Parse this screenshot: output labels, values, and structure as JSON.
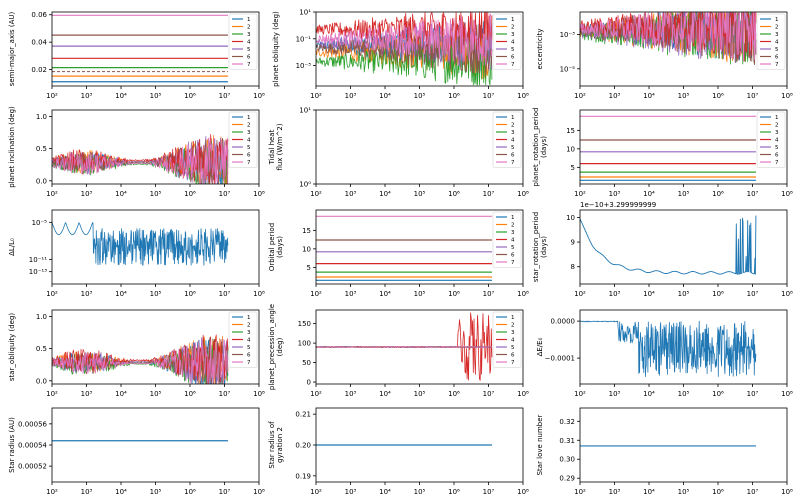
{
  "figure": {
    "background": "#ffffff"
  },
  "colors": [
    "#1f77b4",
    "#ff7f0e",
    "#2ca02c",
    "#d62728",
    "#9467bd",
    "#8c564b",
    "#e377c2"
  ],
  "x_axis": {
    "scale": "log",
    "range": [
      100,
      100000000
    ],
    "ticks": [
      2,
      3,
      4,
      5,
      6,
      7,
      8
    ]
  },
  "chart_data": [
    {
      "id": "sma",
      "type": "line",
      "ylabel": "semi-major_axis (AU)",
      "yscale": "linear",
      "ylim": [
        0.008,
        0.062
      ],
      "yticks": [
        "0.02",
        "0.04",
        "0.06"
      ],
      "ytick_values": [
        0.02,
        0.04,
        0.06
      ],
      "legend": [
        "1",
        "2",
        "3",
        "4",
        "5",
        "6",
        "7"
      ],
      "style": "flat",
      "series_values": [
        0.0111,
        0.0152,
        0.0214,
        0.0282,
        0.0371,
        0.0451,
        0.0596
      ]
    },
    {
      "id": "pob",
      "type": "line",
      "ylabel": "planet obliquity (deg)",
      "yscale": "log",
      "ylim": [
        3e-05,
        10
      ],
      "yticks": [
        "10⁻³",
        "10⁻¹",
        "10¹"
      ],
      "ytick_values": [
        0.001,
        0.1,
        10
      ],
      "legend": [
        "1",
        "2",
        "3",
        "4",
        "5",
        "6",
        "7"
      ],
      "style": "noisy-log",
      "series_values": [
        0.03,
        0.01,
        0.002,
        0.5,
        0.05,
        0.02,
        0.1
      ]
    },
    {
      "id": "ecc",
      "type": "line",
      "ylabel": "eccentricity",
      "yscale": "log",
      "ylim": [
        1e-06,
        0.02
      ],
      "yticks": [
        "10⁻³",
        "10⁻⁵"
      ],
      "ytick_values": [
        0.001,
        1e-05
      ],
      "legend": [
        "1",
        "2",
        "3",
        "4",
        "5",
        "6",
        "7"
      ],
      "style": "noisy-log",
      "series_values": [
        0.002,
        0.0015,
        0.001,
        0.003,
        0.0012,
        0.0018,
        0.002
      ]
    },
    {
      "id": "pinc",
      "type": "line",
      "ylabel": "planet inclination (deg)",
      "yscale": "linear",
      "ylim": [
        -0.05,
        1.1
      ],
      "yticks": [
        "0.0",
        "0.5",
        "1.0"
      ],
      "ytick_values": [
        0,
        0.5,
        1.0
      ],
      "legend": [
        "1",
        "2",
        "3",
        "4",
        "5",
        "6",
        "7"
      ],
      "style": "band",
      "series_values": [
        0.28,
        0.3,
        0.26,
        0.32,
        0.3,
        0.28,
        0.27
      ]
    },
    {
      "id": "heat",
      "type": "line",
      "ylabel": "Tidal heat\nflux (W/m^2)",
      "yscale": "log",
      "ylim": [
        1,
        10
      ],
      "yticks": [
        "10⁰",
        "10¹"
      ],
      "ytick_values": [
        1,
        10
      ],
      "legend": [
        "1",
        "2",
        "3",
        "4",
        "5",
        "6",
        "7"
      ],
      "style": "empty",
      "series_values": []
    },
    {
      "id": "prot",
      "type": "line",
      "ylabel": "planet_rotation_period\n(days)",
      "yscale": "linear",
      "ylim": [
        0.5,
        20.5
      ],
      "yticks": [
        "5",
        "10",
        "15"
      ],
      "ytick_values": [
        5,
        10,
        15
      ],
      "legend": [
        "1",
        "2",
        "3",
        "4",
        "5",
        "6",
        "7"
      ],
      "style": "flat",
      "series_values": [
        1.5,
        2.4,
        3.7,
        6.0,
        9.2,
        12.4,
        18.8
      ]
    },
    {
      "id": "dL",
      "type": "line",
      "ylabel": "ΔL/L₀",
      "yscale": "log",
      "ylim": 1e-15,
      "ylim_max": 0.001,
      "yticks": [
        "10⁻⁵",
        "10⁻¹¹",
        "10⁻¹³"
      ],
      "ytick_values": [
        1e-05,
        1e-11,
        1e-13
      ],
      "legend": [],
      "style": "single-noisy",
      "series_values": [
        1e-05
      ]
    },
    {
      "id": "porb",
      "type": "line",
      "ylabel": "Orbital period\n(days)",
      "yscale": "linear",
      "ylim": [
        0.5,
        20.5
      ],
      "yticks": [
        "5",
        "10",
        "15"
      ],
      "ytick_values": [
        5,
        10,
        15
      ],
      "legend": [
        "1",
        "2",
        "3",
        "4",
        "5",
        "6",
        "7"
      ],
      "style": "flat",
      "series_values": [
        1.5,
        2.4,
        3.7,
        6.0,
        9.2,
        12.4,
        18.8
      ]
    },
    {
      "id": "srot",
      "type": "line",
      "ylabel": "star_rotation_period\n(days)",
      "yscale": "linear",
      "offset_text": "1e−10+3.299999999",
      "ylim": [
        7.3,
        10.3
      ],
      "yticks": [
        "8",
        "9",
        "10"
      ],
      "ytick_values": [
        8,
        9,
        10
      ],
      "legend": [],
      "style": "srot",
      "series_values": [
        10.0
      ]
    },
    {
      "id": "sob",
      "type": "line",
      "ylabel": "star_obliquity (deg)",
      "yscale": "linear",
      "ylim": [
        -0.05,
        1.1
      ],
      "yticks": [
        "0.0",
        "0.5",
        "1.0"
      ],
      "ytick_values": [
        0,
        0.5,
        1.0
      ],
      "legend": [
        "1",
        "2",
        "3",
        "4",
        "5",
        "6",
        "7"
      ],
      "style": "band",
      "series_values": [
        0.28,
        0.3,
        0.26,
        0.32,
        0.3,
        0.28,
        0.27
      ]
    },
    {
      "id": "prec",
      "type": "line",
      "ylabel": "planet_precession_angle\n(deg)",
      "yscale": "linear",
      "ylim": [
        -5,
        185
      ],
      "yticks": [
        "0",
        "50",
        "100",
        "150"
      ],
      "ytick_values": [
        0,
        50,
        100,
        150
      ],
      "legend": [
        "1",
        "2",
        "3",
        "4",
        "5",
        "6",
        "7"
      ],
      "style": "prec",
      "series_values": [
        90
      ]
    },
    {
      "id": "dE",
      "type": "line",
      "ylabel": "ΔE/E₀",
      "yscale": "linear",
      "ylim": [
        -0.00017,
        3e-05
      ],
      "yticks": [
        "0.0000",
        "−0.0001"
      ],
      "ytick_values": [
        0,
        -0.0001
      ],
      "legend": [],
      "style": "single-noisy-lin",
      "series_values": [
        0
      ]
    },
    {
      "id": "srad",
      "type": "line",
      "ylabel": "Star radius (AU)",
      "yscale": "linear",
      "ylim": [
        0.000505,
        0.000575
      ],
      "yticks": [
        "0.00052",
        "0.00054",
        "0.00056"
      ],
      "ytick_values": [
        0.00052,
        0.00054,
        0.00056
      ],
      "legend": [],
      "style": "single-flat",
      "series_values": [
        0.000544
      ]
    },
    {
      "id": "sgyr",
      "type": "line",
      "ylabel": "Star radius of\ngyration 2",
      "yscale": "linear",
      "ylim": [
        0.188,
        0.212
      ],
      "yticks": [
        "0.19",
        "0.20",
        "0.21"
      ],
      "ytick_values": [
        0.19,
        0.2,
        0.21
      ],
      "legend": [],
      "style": "single-flat",
      "series_values": [
        0.2
      ]
    },
    {
      "id": "slove",
      "type": "line",
      "ylabel": "Star love number",
      "yscale": "linear",
      "ylim": [
        0.288,
        0.327
      ],
      "yticks": [
        "0.29",
        "0.30",
        "0.31",
        "0.32"
      ],
      "ytick_values": [
        0.29,
        0.3,
        0.31,
        0.32
      ],
      "legend": [],
      "style": "single-flat",
      "series_values": [
        0.307
      ]
    }
  ]
}
